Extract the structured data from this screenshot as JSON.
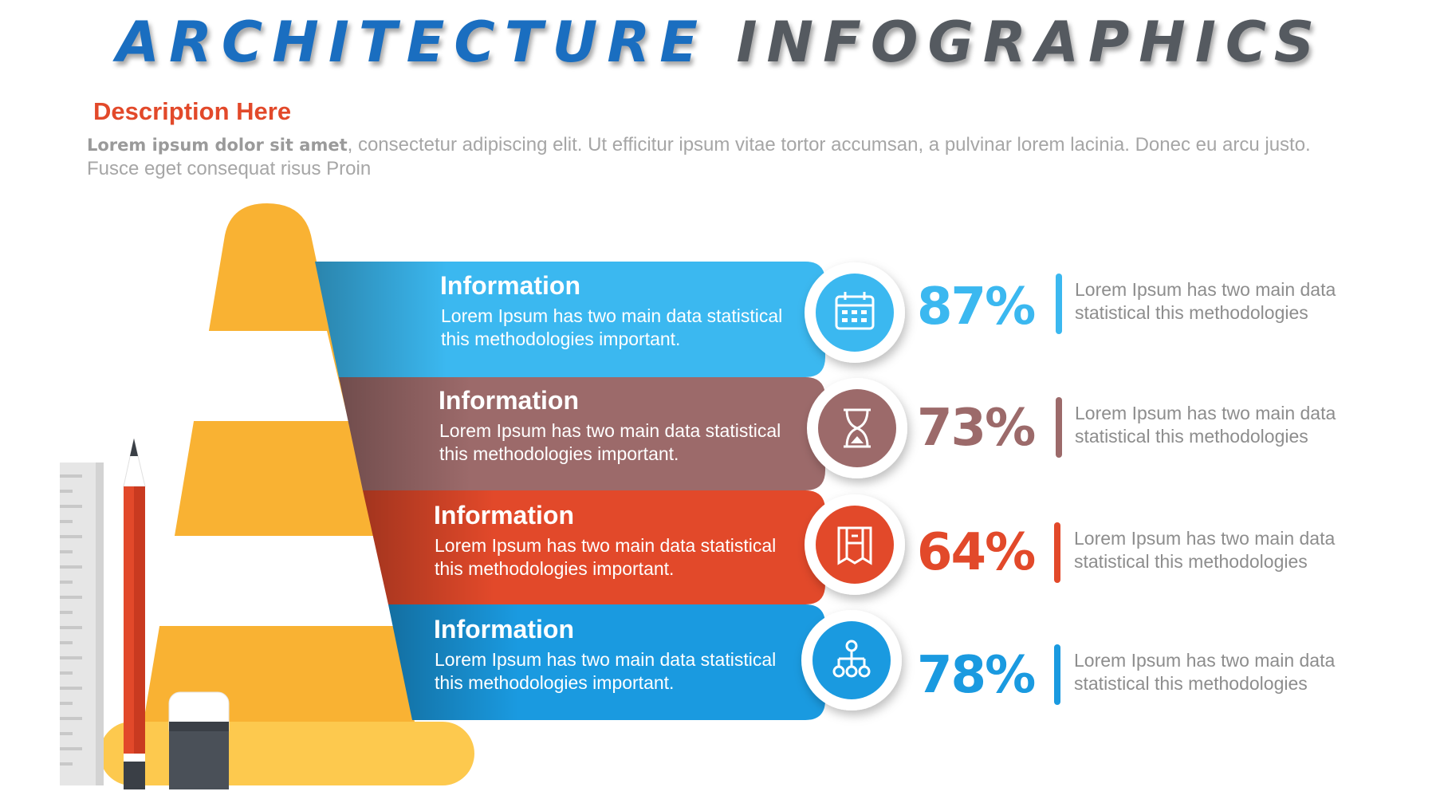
{
  "title": {
    "part1": "ARCHITECTURE",
    "part2": "INFOGRAPHICS"
  },
  "description": {
    "heading": "Description Here",
    "lead": "Lorem ipsum dolor sit amet",
    "body": ", consectetur adipiscing elit. Ut efficitur ipsum vitae tortor accumsan, a pulvinar lorem lacinia. Donec eu arcu justo. Fusce eget consequat risus Proin"
  },
  "colors": {
    "band1": "#3bb8f0",
    "band2": "#9c6a6a",
    "band3": "#e2492a",
    "band4": "#1a9ae0",
    "cone": "#f9b233",
    "cone_base": "#fdc94e",
    "pencil": "#e2492a",
    "eraser": "#4a5058"
  },
  "items": [
    {
      "title": "Information",
      "text": "Lorem Ipsum has two main data statistical this methodologies important.",
      "icon": "calendar-icon",
      "percent": "87%",
      "color": "#3bb8f0",
      "side_text": "Lorem Ipsum has two main data statistical this methodologies"
    },
    {
      "title": "Information",
      "text": "Lorem Ipsum has two main data statistical this methodologies important.",
      "icon": "hourglass-icon",
      "percent": "73%",
      "color": "#9c6a6a",
      "side_text": "Lorem Ipsum has two main data statistical this methodologies"
    },
    {
      "title": "Information",
      "text": "Lorem Ipsum has two main data statistical this methodologies important.",
      "icon": "blueprint-icon",
      "percent": "64%",
      "color": "#e2492a",
      "side_text": "Lorem Ipsum has two main data statistical this methodologies"
    },
    {
      "title": "Information",
      "text": "Lorem Ipsum has two main data statistical this methodologies important.",
      "icon": "hierarchy-icon",
      "percent": "78%",
      "color": "#1a9ae0",
      "side_text": "Lorem Ipsum has two main data statistical this methodologies"
    }
  ]
}
